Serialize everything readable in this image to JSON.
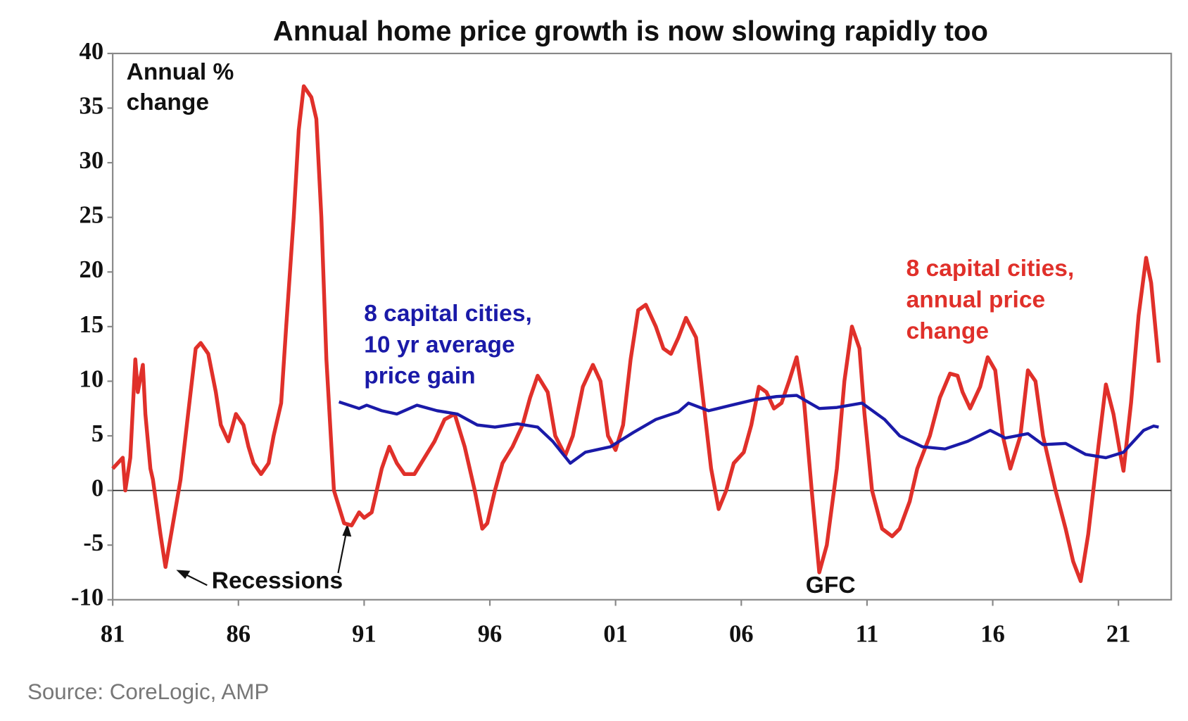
{
  "chart_data": {
    "type": "line",
    "title": "Annual home price growth is now slowing rapidly too",
    "y_label_lines": [
      "Annual %",
      "change"
    ],
    "source": "Source: CoreLogic, AMP",
    "annotations": [
      "Recessions",
      "GFC"
    ],
    "xlim": [
      1981,
      2023.1
    ],
    "ylim": [
      -10,
      40
    ],
    "yticks": [
      -10,
      -5,
      0,
      5,
      10,
      15,
      20,
      25,
      30,
      35,
      40
    ],
    "xticks": [
      {
        "value": 1981,
        "label": "81"
      },
      {
        "value": 1986,
        "label": "86"
      },
      {
        "value": 1991,
        "label": "91"
      },
      {
        "value": 1996,
        "label": "96"
      },
      {
        "value": 2001,
        "label": "01"
      },
      {
        "value": 2006,
        "label": "06"
      },
      {
        "value": 2011,
        "label": "11"
      },
      {
        "value": 2016,
        "label": "16"
      },
      {
        "value": 2021,
        "label": "21"
      }
    ],
    "series": [
      {
        "name_lines": [
          "8 capital cities,",
          "annual price",
          "change"
        ],
        "color": "#e0302a",
        "x": [
          1981.0,
          1981.4,
          1981.5,
          1981.7,
          1981.9,
          1982.0,
          1982.2,
          1982.3,
          1982.5,
          1982.6,
          1982.9,
          1983.1,
          1983.4,
          1983.7,
          1984.0,
          1984.3,
          1984.5,
          1984.8,
          1985.1,
          1985.3,
          1985.6,
          1985.9,
          1986.2,
          1986.4,
          1986.6,
          1986.9,
          1987.2,
          1987.4,
          1987.7,
          1987.9,
          1988.2,
          1988.4,
          1988.6,
          1988.9,
          1989.1,
          1989.3,
          1989.5,
          1989.8,
          1990.2,
          1990.5,
          1990.8,
          1991.0,
          1991.3,
          1991.7,
          1992.0,
          1992.3,
          1992.6,
          1993.0,
          1993.4,
          1993.8,
          1994.2,
          1994.6,
          1995.0,
          1995.4,
          1995.7,
          1995.9,
          1996.2,
          1996.5,
          1996.9,
          1997.3,
          1997.6,
          1997.9,
          1998.3,
          1998.6,
          1999.0,
          1999.3,
          1999.7,
          2000.1,
          2000.4,
          2000.7,
          2001.0,
          2001.3,
          2001.6,
          2001.9,
          2002.2,
          2002.6,
          2002.9,
          2003.2,
          2003.5,
          2003.8,
          2004.2,
          2004.5,
          2004.8,
          2005.1,
          2005.4,
          2005.7,
          2006.1,
          2006.4,
          2006.7,
          2007.0,
          2007.3,
          2007.6,
          2007.9,
          2008.2,
          2008.5,
          2008.8,
          2009.1,
          2009.4,
          2009.8,
          2010.1,
          2010.4,
          2010.7,
          2010.9,
          2011.2,
          2011.6,
          2012.0,
          2012.3,
          2012.7,
          2013.0,
          2013.5,
          2013.9,
          2014.3,
          2014.6,
          2014.8,
          2015.1,
          2015.5,
          2015.8,
          2016.1,
          2016.4,
          2016.7,
          2017.1,
          2017.4,
          2017.7,
          2018.0,
          2018.5,
          2018.9,
          2019.2,
          2019.5,
          2019.8,
          2020.2,
          2020.5,
          2020.8,
          2021.1,
          2021.2,
          2021.5,
          2021.8,
          2022.1,
          2022.3,
          2022.6
        ],
        "values": [
          2,
          3,
          0,
          3,
          12,
          9,
          11.5,
          7,
          2,
          1,
          -4,
          -7,
          -3,
          1,
          7,
          13,
          13.5,
          12.5,
          9,
          6,
          4.5,
          7,
          6,
          4,
          2.5,
          1.5,
          2.5,
          5,
          8,
          15,
          25,
          33,
          37,
          36,
          34,
          25,
          12,
          0,
          -3,
          -3.2,
          -2,
          -2.5,
          -2,
          2,
          4,
          2.5,
          1.5,
          1.5,
          3,
          4.5,
          6.5,
          7,
          4,
          0,
          -3.5,
          -3,
          0,
          2.5,
          4,
          6,
          8.5,
          10.5,
          9,
          5,
          3.2,
          5,
          9.5,
          11.5,
          10,
          5,
          3.7,
          6,
          12,
          16.5,
          17,
          15,
          13,
          12.5,
          14,
          15.8,
          14,
          8,
          2,
          -1.7,
          0,
          2.5,
          3.5,
          6,
          9.5,
          9,
          7.5,
          8,
          10,
          12.2,
          8,
          0,
          -7.5,
          -5,
          2,
          10,
          15,
          13,
          7,
          0,
          -3.5,
          -4.2,
          -3.5,
          -1,
          2,
          5,
          8.5,
          10.7,
          10.5,
          9,
          7.5,
          9.5,
          12.2,
          11,
          5,
          2,
          5,
          11,
          10,
          5,
          0,
          -3.5,
          -6.5,
          -8.3,
          -4,
          4,
          9.7,
          7,
          3,
          1.8,
          8,
          16,
          21.3,
          19,
          11.7
        ]
      },
      {
        "name_lines": [
          "8 capital cities,",
          "10 yr average",
          "price gain"
        ],
        "color": "#1a1aa8",
        "x": [
          1990.0,
          1990.8,
          1991.1,
          1991.7,
          1992.3,
          1993.1,
          1993.9,
          1994.7,
          1995.5,
          1996.2,
          1997.1,
          1997.9,
          1998.5,
          1999.2,
          1999.8,
          2000.8,
          2001.7,
          2002.6,
          2003.5,
          2003.9,
          2004.7,
          2005.6,
          2006.5,
          2007.4,
          2008.2,
          2009.1,
          2009.8,
          2010.8,
          2011.7,
          2012.3,
          2013.2,
          2014.1,
          2015.0,
          2015.9,
          2016.5,
          2017.4,
          2018.0,
          2018.9,
          2019.7,
          2020.5,
          2021.2,
          2022.0,
          2022.4,
          2022.6
        ],
        "values": [
          8.1,
          7.5,
          7.8,
          7.3,
          7.0,
          7.8,
          7.3,
          7,
          6,
          5.8,
          6.1,
          5.8,
          4.5,
          2.5,
          3.5,
          4,
          5.3,
          6.5,
          7.2,
          8,
          7.3,
          7.8,
          8.3,
          8.6,
          8.7,
          7.5,
          7.6,
          8,
          6.5,
          5,
          4,
          3.8,
          4.5,
          5.5,
          4.8,
          5.2,
          4.2,
          4.3,
          3.3,
          3,
          3.5,
          5.5,
          5.9,
          5.8
        ]
      }
    ]
  }
}
